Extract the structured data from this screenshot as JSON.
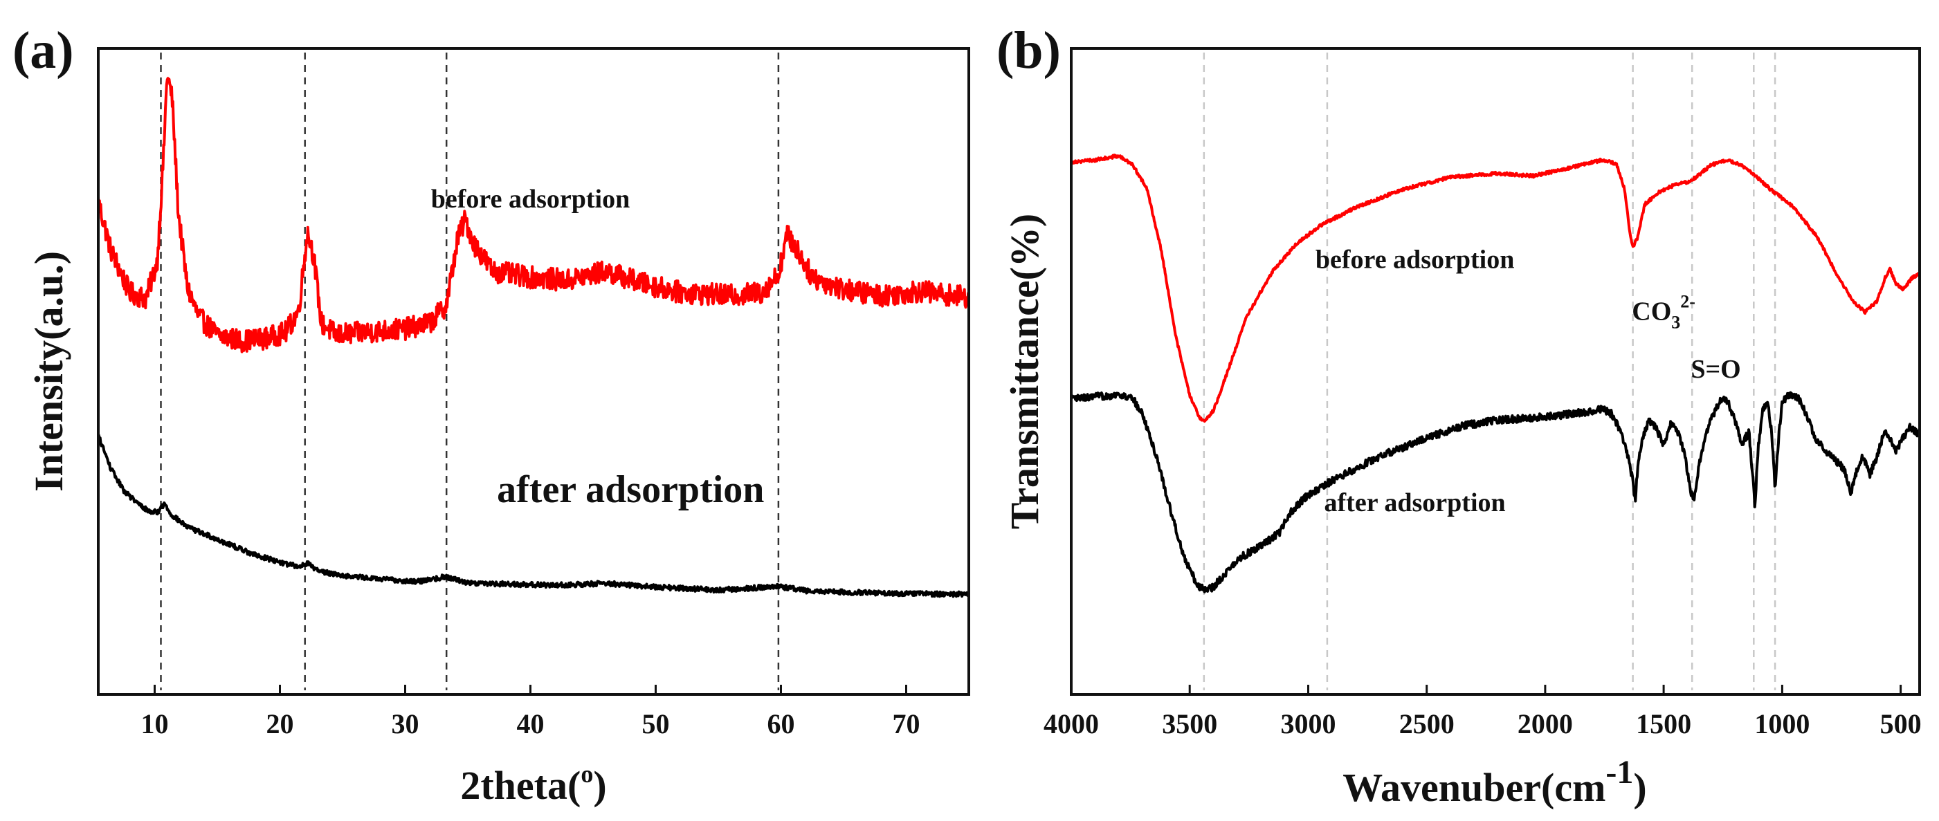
{
  "chart_data": [
    {
      "type": "line",
      "panel_label": "(a)",
      "xlabel": "2theta(",
      "xlabel_sup": "o",
      "xlabel_close": ")",
      "ylabel": "Intensity(a.u.)",
      "xlim": [
        5.5,
        75
      ],
      "ylim": [
        0,
        1
      ],
      "y_ticks_shown": false,
      "x_ticks": [
        10,
        20,
        30,
        40,
        50,
        60,
        70
      ],
      "x_tick_labels": [
        "10",
        "20",
        "30",
        "40",
        "50",
        "60",
        "70"
      ],
      "reference_lines": [
        10.5,
        22,
        33.3,
        59.8
      ],
      "series": [
        {
          "name": "before adsorption",
          "color": "#ff0000",
          "noise": 0.018,
          "points": [
            [
              5.5,
              0.78
            ],
            [
              6.5,
              0.7
            ],
            [
              8,
              0.63
            ],
            [
              9.3,
              0.62
            ],
            [
              10.2,
              0.68
            ],
            [
              10.7,
              0.85
            ],
            [
              11.0,
              0.99
            ],
            [
              11.4,
              0.95
            ],
            [
              11.9,
              0.76
            ],
            [
              12.6,
              0.64
            ],
            [
              13.5,
              0.59
            ],
            [
              15,
              0.56
            ],
            [
              17,
              0.55
            ],
            [
              19,
              0.555
            ],
            [
              20.5,
              0.565
            ],
            [
              21.5,
              0.6
            ],
            [
              22.2,
              0.73
            ],
            [
              22.7,
              0.69
            ],
            [
              23.3,
              0.58
            ],
            [
              24.5,
              0.56
            ],
            [
              27,
              0.565
            ],
            [
              30,
              0.57
            ],
            [
              32,
              0.58
            ],
            [
              33.3,
              0.61
            ],
            [
              34.2,
              0.72
            ],
            [
              34.8,
              0.75
            ],
            [
              35.5,
              0.71
            ],
            [
              37,
              0.665
            ],
            [
              40,
              0.655
            ],
            [
              43,
              0.65
            ],
            [
              46,
              0.665
            ],
            [
              49,
              0.645
            ],
            [
              52,
              0.63
            ],
            [
              56,
              0.625
            ],
            [
              58.5,
              0.63
            ],
            [
              59.8,
              0.66
            ],
            [
              60.5,
              0.725
            ],
            [
              61.3,
              0.7
            ],
            [
              62.5,
              0.655
            ],
            [
              65,
              0.635
            ],
            [
              68,
              0.625
            ],
            [
              71,
              0.632
            ],
            [
              75,
              0.622
            ]
          ]
        },
        {
          "name": "after adsorption",
          "color": "#000000",
          "noise": 0.004,
          "points": [
            [
              5.5,
              0.395
            ],
            [
              6.5,
              0.34
            ],
            [
              7.5,
              0.305
            ],
            [
              8.5,
              0.285
            ],
            [
              9.5,
              0.27
            ],
            [
              10.2,
              0.268
            ],
            [
              10.8,
              0.282
            ],
            [
              11.3,
              0.265
            ],
            [
              12.5,
              0.245
            ],
            [
              14,
              0.232
            ],
            [
              16,
              0.215
            ],
            [
              18,
              0.198
            ],
            [
              20,
              0.186
            ],
            [
              21.5,
              0.178
            ],
            [
              22.2,
              0.185
            ],
            [
              23,
              0.172
            ],
            [
              25,
              0.164
            ],
            [
              28,
              0.158
            ],
            [
              31,
              0.154
            ],
            [
              33.3,
              0.162
            ],
            [
              35,
              0.152
            ],
            [
              38,
              0.15
            ],
            [
              42,
              0.148
            ],
            [
              46,
              0.151
            ],
            [
              50,
              0.145
            ],
            [
              55,
              0.14
            ],
            [
              59.8,
              0.146
            ],
            [
              62,
              0.139
            ],
            [
              66,
              0.136
            ],
            [
              70,
              0.134
            ],
            [
              75,
              0.133
            ]
          ]
        }
      ],
      "annotations": [
        {
          "text": "before  adsorption",
          "at": [
            40,
            0.77
          ],
          "size": "normal"
        },
        {
          "text": "after  adsorption",
          "at": [
            48,
            0.285
          ],
          "size": "big"
        }
      ]
    },
    {
      "type": "line",
      "panel_label": "(b)",
      "xlabel": "Wavenuber(cm",
      "xlabel_sup": "-1",
      "xlabel_close": ")",
      "ylabel": "Transmittance(%)",
      "xlim": [
        4000,
        420
      ],
      "ylim": [
        0,
        1
      ],
      "y_ticks_shown": false,
      "x_ticks": [
        4000,
        3500,
        3000,
        2500,
        2000,
        1500,
        1000,
        500
      ],
      "x_tick_labels": [
        "4000",
        "3500",
        "3000",
        "2500",
        "2000",
        "1500",
        "1000",
        "500"
      ],
      "reference_lines": [
        3440,
        2920,
        1630,
        1380,
        1120,
        1030
      ],
      "series": [
        {
          "name": "before adsorption",
          "color": "#ff0000",
          "noise": 0.0025,
          "points": [
            [
              4000,
              0.845
            ],
            [
              3900,
              0.848
            ],
            [
              3800,
              0.855
            ],
            [
              3740,
              0.84
            ],
            [
              3680,
              0.8
            ],
            [
              3620,
              0.7
            ],
            [
              3560,
              0.56
            ],
            [
              3500,
              0.46
            ],
            [
              3460,
              0.425
            ],
            [
              3440,
              0.418
            ],
            [
              3400,
              0.435
            ],
            [
              3340,
              0.5
            ],
            [
              3260,
              0.59
            ],
            [
              3150,
              0.665
            ],
            [
              3050,
              0.71
            ],
            [
              2950,
              0.74
            ],
            [
              2800,
              0.77
            ],
            [
              2600,
              0.8
            ],
            [
              2400,
              0.82
            ],
            [
              2200,
              0.826
            ],
            [
              2050,
              0.822
            ],
            [
              1900,
              0.835
            ],
            [
              1760,
              0.848
            ],
            [
              1700,
              0.842
            ],
            [
              1665,
              0.8
            ],
            [
              1640,
              0.72
            ],
            [
              1630,
              0.705
            ],
            [
              1610,
              0.72
            ],
            [
              1580,
              0.775
            ],
            [
              1520,
              0.795
            ],
            [
              1450,
              0.808
            ],
            [
              1400,
              0.812
            ],
            [
              1370,
              0.818
            ],
            [
              1300,
              0.84
            ],
            [
              1230,
              0.848
            ],
            [
              1150,
              0.835
            ],
            [
              1050,
              0.8
            ],
            [
              950,
              0.77
            ],
            [
              850,
              0.72
            ],
            [
              770,
              0.66
            ],
            [
              700,
              0.615
            ],
            [
              650,
              0.598
            ],
            [
              600,
              0.615
            ],
            [
              565,
              0.655
            ],
            [
              545,
              0.668
            ],
            [
              520,
              0.645
            ],
            [
              490,
              0.635
            ],
            [
              450,
              0.655
            ],
            [
              420,
              0.66
            ]
          ]
        },
        {
          "name": "after adsorption",
          "color": "#000000",
          "noise": 0.006,
          "points": [
            [
              4000,
              0.455
            ],
            [
              3900,
              0.458
            ],
            [
              3800,
              0.462
            ],
            [
              3740,
              0.455
            ],
            [
              3700,
              0.43
            ],
            [
              3640,
              0.36
            ],
            [
              3580,
              0.27
            ],
            [
              3520,
              0.19
            ],
            [
              3470,
              0.15
            ],
            [
              3440,
              0.14
            ],
            [
              3400,
              0.145
            ],
            [
              3350,
              0.168
            ],
            [
              3280,
              0.195
            ],
            [
              3200,
              0.212
            ],
            [
              3120,
              0.235
            ],
            [
              3080,
              0.265
            ],
            [
              3020,
              0.29
            ],
            [
              2900,
              0.32
            ],
            [
              2700,
              0.36
            ],
            [
              2500,
              0.39
            ],
            [
              2350,
              0.41
            ],
            [
              2200,
              0.42
            ],
            [
              2000,
              0.425
            ],
            [
              1850,
              0.432
            ],
            [
              1760,
              0.438
            ],
            [
              1720,
              0.43
            ],
            [
              1680,
              0.4
            ],
            [
              1650,
              0.36
            ],
            [
              1630,
              0.32
            ],
            [
              1620,
              0.285
            ],
            [
              1610,
              0.34
            ],
            [
              1590,
              0.39
            ],
            [
              1560,
              0.42
            ],
            [
              1530,
              0.405
            ],
            [
              1500,
              0.38
            ],
            [
              1470,
              0.415
            ],
            [
              1440,
              0.4
            ],
            [
              1410,
              0.36
            ],
            [
              1385,
              0.3
            ],
            [
              1370,
              0.29
            ],
            [
              1350,
              0.35
            ],
            [
              1320,
              0.4
            ],
            [
              1290,
              0.43
            ],
            [
              1260,
              0.455
            ],
            [
              1230,
              0.45
            ],
            [
              1200,
              0.42
            ],
            [
              1170,
              0.38
            ],
            [
              1140,
              0.4
            ],
            [
              1125,
              0.33
            ],
            [
              1115,
              0.28
            ],
            [
              1100,
              0.38
            ],
            [
              1080,
              0.44
            ],
            [
              1060,
              0.45
            ],
            [
              1045,
              0.4
            ],
            [
              1030,
              0.31
            ],
            [
              1015,
              0.39
            ],
            [
              1000,
              0.45
            ],
            [
              970,
              0.462
            ],
            [
              930,
              0.455
            ],
            [
              900,
              0.43
            ],
            [
              860,
              0.39
            ],
            [
              820,
              0.37
            ],
            [
              780,
              0.355
            ],
            [
              740,
              0.34
            ],
            [
              710,
              0.3
            ],
            [
              690,
              0.33
            ],
            [
              660,
              0.36
            ],
            [
              630,
              0.33
            ],
            [
              600,
              0.36
            ],
            [
              570,
              0.4
            ],
            [
              545,
              0.39
            ],
            [
              520,
              0.37
            ],
            [
              490,
              0.39
            ],
            [
              460,
              0.41
            ],
            [
              420,
              0.395
            ]
          ]
        }
      ],
      "annotations": [
        {
          "text": "before  adsorption",
          "at": [
            2550,
            0.67
          ],
          "size": "normal"
        },
        {
          "text": "after  adsorption",
          "at": [
            2550,
            0.27
          ],
          "size": "normal"
        },
        {
          "text": "CO",
          "sub": "3",
          "sup": "2-",
          "at": [
            1500,
            0.585
          ],
          "size": "normal"
        },
        {
          "text": "S=O",
          "at": [
            1280,
            0.49
          ],
          "size": "normal"
        }
      ]
    }
  ]
}
